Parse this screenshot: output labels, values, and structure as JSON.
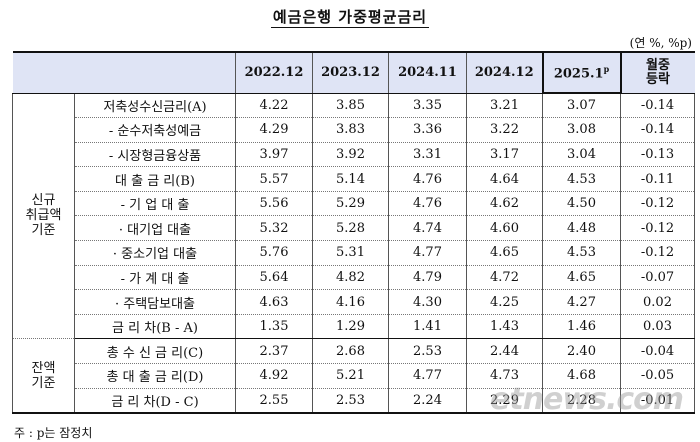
{
  "title": "예금은행 가중평균금리",
  "unit": "(연 %, %p)",
  "header": {
    "columns": [
      "2022.12",
      "2023.12",
      "2024.11",
      "2024.12",
      "2025.1"
    ],
    "prelim_mark": "p",
    "change_line1": "월중",
    "change_line2": "등락"
  },
  "groups": {
    "new": [
      "신규",
      "취급액",
      "기준"
    ],
    "balance": [
      "잔액",
      "기준"
    ]
  },
  "rows": [
    {
      "label": "저축성수신금리(A)",
      "values": [
        "4.22",
        "3.85",
        "3.35",
        "3.21",
        "3.07",
        "-0.14"
      ]
    },
    {
      "label": "- 순수저축성예금",
      "values": [
        "4.29",
        "3.83",
        "3.36",
        "3.22",
        "3.08",
        "-0.14"
      ]
    },
    {
      "label": "- 시장형금융상품",
      "values": [
        "3.97",
        "3.92",
        "3.31",
        "3.17",
        "3.04",
        "-0.13"
      ]
    },
    {
      "label": "대 출 금 리(B)",
      "values": [
        "5.57",
        "5.14",
        "4.76",
        "4.64",
        "4.53",
        "-0.11"
      ]
    },
    {
      "label": "- 기 업 대 출",
      "values": [
        "5.56",
        "5.29",
        "4.76",
        "4.62",
        "4.50",
        "-0.12"
      ]
    },
    {
      "label": "· 대기업 대출",
      "values": [
        "5.32",
        "5.28",
        "4.74",
        "4.60",
        "4.48",
        "-0.12"
      ]
    },
    {
      "label": "· 중소기업 대출",
      "values": [
        "5.76",
        "5.31",
        "4.77",
        "4.65",
        "4.53",
        "-0.12"
      ]
    },
    {
      "label": "- 가 계 대 출",
      "values": [
        "5.64",
        "4.82",
        "4.79",
        "4.72",
        "4.65",
        "-0.07"
      ]
    },
    {
      "label": "· 주택담보대출",
      "values": [
        "4.63",
        "4.16",
        "4.30",
        "4.25",
        "4.27",
        "0.02"
      ]
    },
    {
      "label": "금 리 차(B - A)",
      "values": [
        "1.35",
        "1.29",
        "1.41",
        "1.43",
        "1.46",
        "0.03"
      ]
    },
    {
      "label": "총 수 신 금 리(C)",
      "values": [
        "2.37",
        "2.68",
        "2.53",
        "2.44",
        "2.40",
        "-0.04"
      ]
    },
    {
      "label": "총 대 출 금 리(D)",
      "values": [
        "4.92",
        "5.21",
        "4.77",
        "4.73",
        "4.68",
        "-0.05"
      ]
    },
    {
      "label": "금 리 차(D - C)",
      "values": [
        "2.55",
        "2.53",
        "2.24",
        "2.29",
        "2.28",
        "-0.01"
      ]
    }
  ],
  "note": "주 : p는 잠정치",
  "watermark": "etnews.com"
}
